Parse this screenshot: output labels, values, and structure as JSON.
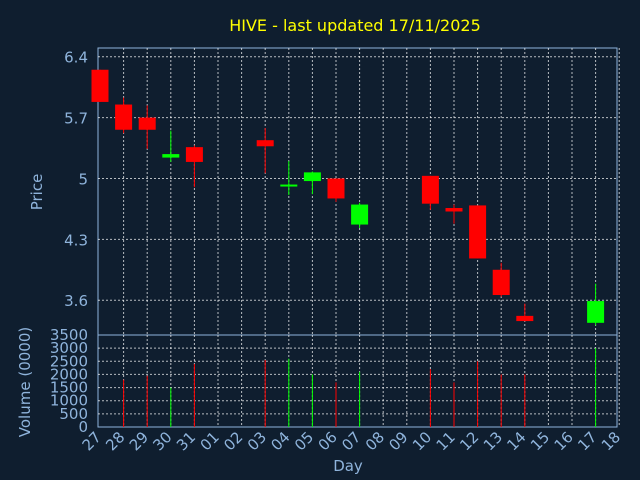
{
  "chart_data": {
    "type": "candlestick",
    "title": "HIVE - last updated 17/11/2025",
    "xlabel": "Day",
    "ylabel_price": "Price",
    "ylabel_volume": "Volume (0000)",
    "price_ticks": [
      "6.4",
      "5.7",
      "5",
      "4.3",
      "3.6"
    ],
    "price_tick_values": [
      6.4,
      5.7,
      5.0,
      4.3,
      3.6
    ],
    "price_range": [
      3.2,
      6.5
    ],
    "volume_ticks": [
      "3500",
      "3000",
      "2500",
      "2000",
      "1500",
      "1000",
      "500",
      "0"
    ],
    "volume_tick_values": [
      3500,
      3000,
      2500,
      2000,
      1500,
      1000,
      500,
      0
    ],
    "volume_range": [
      0,
      3500
    ],
    "x_tick_labels": [
      "27",
      "28",
      "29",
      "30",
      "31",
      "01",
      "02",
      "03",
      "04",
      "05",
      "06",
      "07",
      "08",
      "09",
      "10",
      "11",
      "12",
      "13",
      "14",
      "15",
      "16",
      "17",
      "18"
    ],
    "grid": true,
    "colors": {
      "up": "#00ff00",
      "down": "#ff0000",
      "title": "#ffff00",
      "axis_text": "#8fb4dc",
      "grid": "#ffffff",
      "background": "#0f1e2f"
    },
    "candles": [
      {
        "day": "27",
        "open": 6.25,
        "high": 6.25,
        "low": 5.88,
        "close": 5.88,
        "volume": 0
      },
      {
        "day": "28",
        "open": 5.85,
        "high": 5.93,
        "low": 5.52,
        "close": 5.56,
        "volume": 1800
      },
      {
        "day": "29",
        "open": 5.7,
        "high": 5.84,
        "low": 5.34,
        "close": 5.56,
        "volume": 1950
      },
      {
        "day": "30",
        "open": 5.24,
        "high": 5.55,
        "low": 5.19,
        "close": 5.28,
        "volume": 1500
      },
      {
        "day": "31",
        "open": 5.36,
        "high": 5.38,
        "low": 4.9,
        "close": 5.19,
        "volume": 2400
      },
      {
        "day": "03",
        "open": 5.44,
        "high": 5.58,
        "low": 5.06,
        "close": 5.37,
        "volume": 2550
      },
      {
        "day": "04",
        "open": 4.91,
        "high": 5.2,
        "low": 4.81,
        "close": 4.93,
        "volume": 2600
      },
      {
        "day": "05",
        "open": 4.97,
        "high": 5.08,
        "low": 4.82,
        "close": 5.07,
        "volume": 2000
      },
      {
        "day": "06",
        "open": 5.0,
        "high": 5.0,
        "low": 4.73,
        "close": 4.77,
        "volume": 1700
      },
      {
        "day": "07",
        "open": 4.47,
        "high": 4.72,
        "low": 4.43,
        "close": 4.7,
        "volume": 2100
      },
      {
        "day": "10",
        "open": 5.03,
        "high": 5.03,
        "low": 4.64,
        "close": 4.71,
        "volume": 2200
      },
      {
        "day": "11",
        "open": 4.66,
        "high": 4.7,
        "low": 4.48,
        "close": 4.62,
        "volume": 1700
      },
      {
        "day": "12",
        "open": 4.69,
        "high": 4.69,
        "low": 4.08,
        "close": 4.08,
        "volume": 2500
      },
      {
        "day": "13",
        "open": 3.95,
        "high": 4.03,
        "low": 3.64,
        "close": 3.66,
        "volume": 2000
      },
      {
        "day": "14",
        "open": 3.42,
        "high": 3.56,
        "low": 3.36,
        "close": 3.36,
        "volume": 2000
      },
      {
        "day": "17",
        "open": 3.34,
        "high": 3.79,
        "low": 3.31,
        "close": 3.59,
        "volume": 3000
      }
    ]
  }
}
